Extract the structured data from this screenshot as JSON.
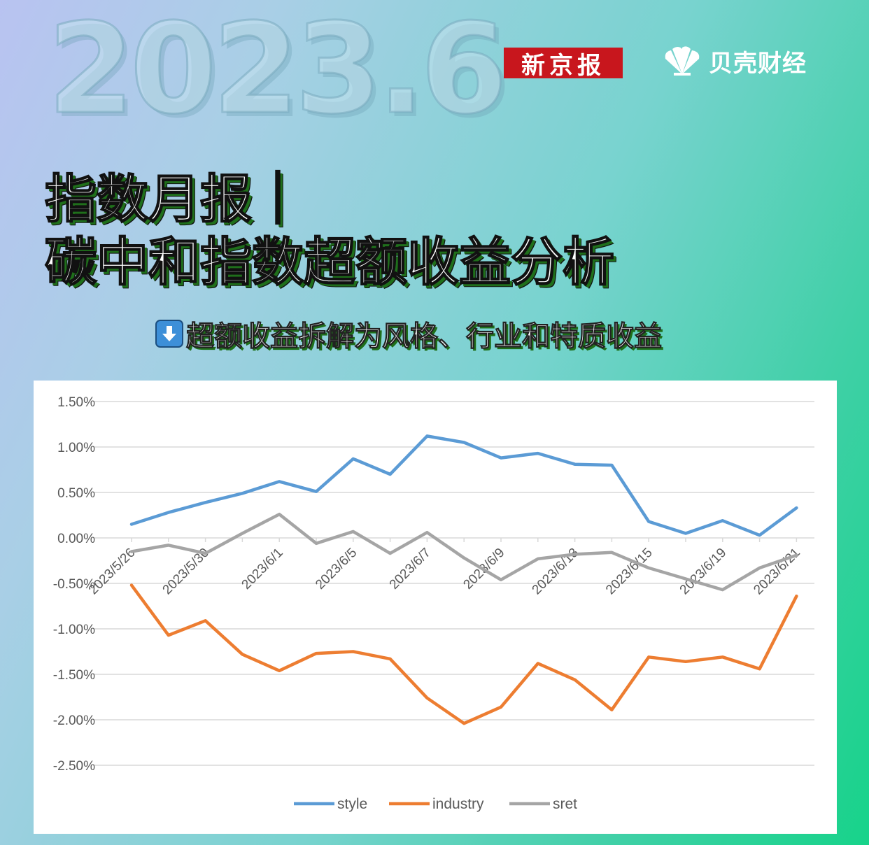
{
  "header": {
    "big_date": "2023.6",
    "logo_newspaper": "新京报",
    "logo_finance": "贝壳财经",
    "logo_finance_icon": "shell-icon"
  },
  "title": {
    "line1": "指数月报｜",
    "line2": "碳中和指数超额收益分析",
    "subtitle": "超额收益拆解为风格、行业和特质收益",
    "subtitle_icon": "down-arrow-icon"
  },
  "colors": {
    "style": "#5b9bd5",
    "industry": "#ed7d31",
    "sret": "#a5a5a5",
    "grid": "#d9d9d9",
    "logo_red": "#c8161d"
  },
  "chart_data": {
    "type": "line",
    "title": "",
    "xlabel": "",
    "ylabel": "",
    "ylim": [
      -2.5,
      1.5
    ],
    "y_unit": "%",
    "yticks": [
      "1.50%",
      "1.00%",
      "0.50%",
      "0.00%",
      "-0.50%",
      "-1.00%",
      "-1.50%",
      "-2.00%",
      "-2.50%"
    ],
    "ytick_values": [
      1.5,
      1.0,
      0.5,
      0.0,
      -0.5,
      -1.0,
      -1.5,
      -2.0,
      -2.5
    ],
    "x_labels_shown": [
      "2023/5/26",
      "2023/5/30",
      "2023/6/1",
      "2023/6/5",
      "2023/6/7",
      "2023/6/9",
      "2023/6/13",
      "2023/6/15",
      "2023/6/19",
      "2023/6/21"
    ],
    "grid": true,
    "legend": "bottom",
    "series": [
      {
        "name": "style",
        "values": [
          0.15,
          0.28,
          0.39,
          0.49,
          0.62,
          0.51,
          0.87,
          0.7,
          1.12,
          1.05,
          0.88,
          0.93,
          0.81,
          0.8,
          0.18,
          0.05,
          0.19,
          0.03,
          0.33
        ]
      },
      {
        "name": "industry",
        "values": [
          -0.52,
          -1.07,
          -0.91,
          -1.28,
          -1.46,
          -1.27,
          -1.25,
          -1.33,
          -1.76,
          -2.04,
          -1.86,
          -1.38,
          -1.56,
          -1.89,
          -1.31,
          -1.36,
          -1.31,
          -1.44,
          -0.64
        ]
      },
      {
        "name": "sret",
        "values": [
          -0.15,
          -0.08,
          -0.17,
          0.05,
          0.26,
          -0.06,
          0.07,
          -0.17,
          0.06,
          -0.22,
          -0.46,
          -0.23,
          -0.18,
          -0.16,
          -0.33,
          -0.45,
          -0.57,
          -0.33,
          -0.19
        ]
      }
    ]
  }
}
